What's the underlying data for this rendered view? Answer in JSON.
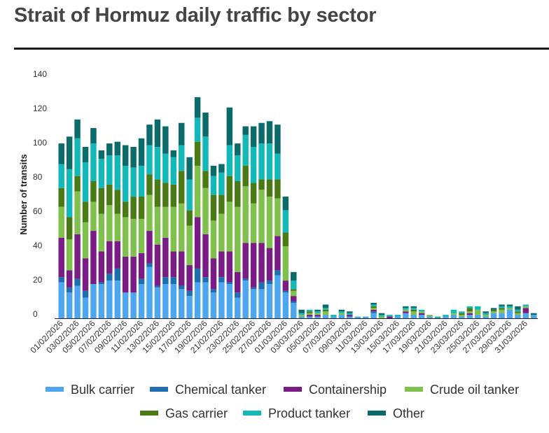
{
  "chart_data": {
    "type": "bar",
    "stacked": true,
    "title": "Strait of Hormuz daily traffic by sector",
    "xlabel": "",
    "ylabel": "Number of transits",
    "ylim": [
      0,
      140
    ],
    "yticks": [
      0,
      20,
      40,
      60,
      80,
      100,
      120,
      140
    ],
    "categories": [
      "01/02/2026",
      "02/02/2026",
      "03/02/2026",
      "04/02/2026",
      "05/02/2026",
      "06/02/2026",
      "07/02/2026",
      "08/02/2026",
      "09/02/2026",
      "10/02/2026",
      "11/02/2026",
      "12/02/2026",
      "13/02/2026",
      "14/02/2026",
      "15/02/2026",
      "16/02/2026",
      "17/02/2026",
      "18/02/2026",
      "19/02/2026",
      "20/02/2026",
      "21/02/2026",
      "22/02/2026",
      "23/02/2026",
      "24/02/2026",
      "25/02/2026",
      "26/02/2026",
      "27/02/2026",
      "28/02/2026",
      "01/03/2026",
      "02/03/2026",
      "03/03/2026",
      "04/03/2026",
      "05/03/2026",
      "06/03/2026",
      "07/03/2026",
      "08/03/2026",
      "09/03/2026",
      "10/03/2026",
      "11/03/2026",
      "12/03/2026",
      "13/03/2026",
      "14/03/2026",
      "15/03/2026",
      "16/03/2026",
      "17/03/2026",
      "18/03/2026",
      "19/03/2026",
      "20/03/2026",
      "21/03/2026",
      "22/03/2026",
      "23/03/2026",
      "24/03/2026",
      "25/03/2026",
      "26/03/2026",
      "27/03/2026",
      "28/03/2026",
      "29/03/2026",
      "30/03/2026",
      "31/03/2026",
      "01/04/2026"
    ],
    "xtick_labels": [
      "01/02/2026",
      "03/02/2026",
      "05/02/2026",
      "07/02/2026",
      "09/02/2026",
      "11/02/2026",
      "13/02/2026",
      "15/02/2026",
      "17/02/2026",
      "19/02/2026",
      "21/02/2026",
      "23/02/2026",
      "25/02/2026",
      "27/02/2026",
      "01/03/2026",
      "03/03/2026",
      "05/03/2026",
      "07/03/2026",
      "09/03/2026",
      "11/03/2026",
      "13/03/2026",
      "15/03/2026",
      "17/03/2026",
      "19/03/2026",
      "21/03/2026",
      "23/03/2026",
      "25/03/2026",
      "27/03/2026",
      "29/03/2026",
      "31/03/2026"
    ],
    "series": [
      {
        "name": "Bulk carrier",
        "color": "#4da6f0",
        "values": [
          21,
          15,
          19,
          12,
          20,
          20,
          22,
          22,
          15,
          15,
          20,
          30,
          18,
          20,
          20,
          17,
          13,
          21,
          21,
          15,
          21,
          20,
          12,
          22,
          17,
          17,
          20,
          25,
          15,
          9,
          1,
          1,
          1,
          2,
          1,
          2,
          1,
          1,
          1,
          3,
          0,
          0,
          1,
          3,
          2,
          2,
          1,
          0,
          1,
          2,
          1,
          2,
          2,
          1,
          3,
          3,
          5,
          2,
          3,
          2
        ]
      },
      {
        "name": "Chemical tanker",
        "color": "#1e6fb0",
        "values": [
          3,
          3,
          4,
          4,
          0,
          1,
          4,
          7,
          0,
          0,
          3,
          2,
          1,
          4,
          4,
          2,
          3,
          8,
          3,
          2,
          3,
          1,
          3,
          1,
          1,
          4,
          2,
          3,
          1,
          1,
          0,
          0,
          0,
          0,
          0,
          0,
          0,
          0,
          0,
          1,
          0,
          0,
          0,
          0,
          0,
          0,
          0,
          0,
          0,
          0,
          0,
          0,
          0,
          0,
          0,
          0,
          0,
          0,
          0,
          0
        ]
      },
      {
        "name": "Containership",
        "color": "#7a1b86",
        "values": [
          23,
          10,
          26,
          19,
          31,
          18,
          19,
          16,
          21,
          21,
          15,
          19,
          24,
          23,
          15,
          20,
          15,
          30,
          25,
          18,
          15,
          18,
          12,
          21,
          26,
          23,
          19,
          20,
          6,
          3,
          0,
          1,
          1,
          0,
          0,
          0,
          1,
          0,
          0,
          1,
          0,
          1,
          0,
          1,
          0,
          1,
          0,
          0,
          0,
          0,
          0,
          1,
          0,
          0,
          0,
          0,
          0,
          0,
          3,
          0
        ]
      },
      {
        "name": "Crude oil tanker",
        "color": "#80c04d",
        "values": [
          18,
          18,
          25,
          21,
          17,
          22,
          21,
          16,
          23,
          22,
          20,
          21,
          22,
          18,
          26,
          28,
          23,
          30,
          27,
          22,
          22,
          29,
          38,
          33,
          23,
          31,
          30,
          22,
          20,
          3,
          1,
          1,
          1,
          2,
          0,
          1,
          0,
          0,
          0,
          1,
          1,
          0,
          0,
          1,
          2,
          1,
          1,
          0,
          0,
          1,
          1,
          1,
          3,
          1,
          1,
          2,
          1,
          1,
          1,
          0
        ]
      },
      {
        "name": "Gas carrier",
        "color": "#4a7a14",
        "values": [
          11,
          13,
          9,
          12,
          12,
          15,
          12,
          14,
          9,
          13,
          13,
          12,
          16,
          14,
          13,
          19,
          9,
          14,
          10,
          15,
          11,
          15,
          15,
          12,
          12,
          6,
          10,
          11,
          8,
          1,
          0,
          1,
          0,
          1,
          0,
          0,
          0,
          0,
          0,
          1,
          0,
          0,
          0,
          0,
          1,
          0,
          0,
          0,
          0,
          0,
          1,
          2,
          0,
          0,
          1,
          1,
          0,
          1,
          0,
          0
        ]
      },
      {
        "name": "Product tanker",
        "color": "#13b8b8",
        "values": [
          14,
          28,
          22,
          23,
          22,
          17,
          17,
          20,
          21,
          17,
          18,
          17,
          19,
          17,
          16,
          15,
          18,
          14,
          20,
          11,
          13,
          18,
          15,
          18,
          21,
          21,
          21,
          15,
          13,
          5,
          1,
          1,
          1,
          1,
          1,
          1,
          1,
          0,
          0,
          1,
          1,
          1,
          1,
          1,
          1,
          1,
          0,
          1,
          1,
          2,
          1,
          1,
          2,
          1,
          0,
          1,
          1,
          1,
          1,
          0
        ]
      },
      {
        "name": "Other",
        "color": "#0b6a6a",
        "values": [
          12,
          19,
          11,
          9,
          9,
          5,
          7,
          8,
          12,
          12,
          16,
          12,
          16,
          16,
          4,
          13,
          13,
          12,
          14,
          6,
          5,
          22,
          7,
          5,
          12,
          12,
          13,
          17,
          8,
          5,
          2,
          0,
          1,
          2,
          0,
          1,
          1,
          0,
          0,
          1,
          1,
          0,
          0,
          1,
          1,
          0,
          0,
          0,
          0,
          0,
          0,
          0,
          0,
          1,
          1,
          1,
          1,
          2,
          0,
          1
        ]
      }
    ],
    "legend_position": "bottom"
  }
}
